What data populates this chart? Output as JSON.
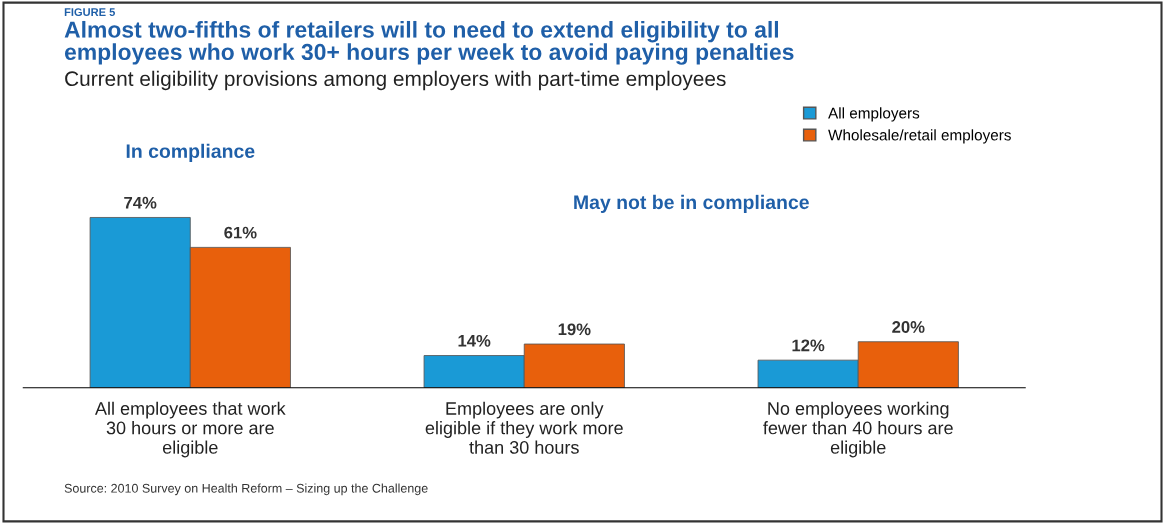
{
  "chart_data": {
    "type": "bar",
    "title": "Almost two-fifths of retailers will to need to extend eligibility to all\nemployees who work 30+ hours per week to avoid paying penalties",
    "subtitle": "Current eligibility provisions among employers with part-time employees",
    "categories": [
      "All employees that work\n30 hours or more are\neligible",
      "Employees are only\neligible if they work more\nthan 30 hours",
      "No employees working\nfewer than 40 hours are\neligible"
    ],
    "series": [
      {
        "name": "All employers",
        "color": "#1a9ad6",
        "values": [
          74,
          14,
          12
        ],
        "value_labels": [
          "74%",
          "14%",
          "12%"
        ]
      },
      {
        "name": "Wholesale/retail employers",
        "color": "#e8600c",
        "values": [
          61,
          19,
          20
        ],
        "value_labels": [
          "61%",
          "19%",
          "20%"
        ]
      }
    ],
    "legend": "top right",
    "grid": false,
    "annotations": [
      "FIGURE 5",
      "In compliance",
      "May not be in compliance",
      "Source: 2010 Survey on Health Reform – Sizing up the Challenge"
    ]
  }
}
